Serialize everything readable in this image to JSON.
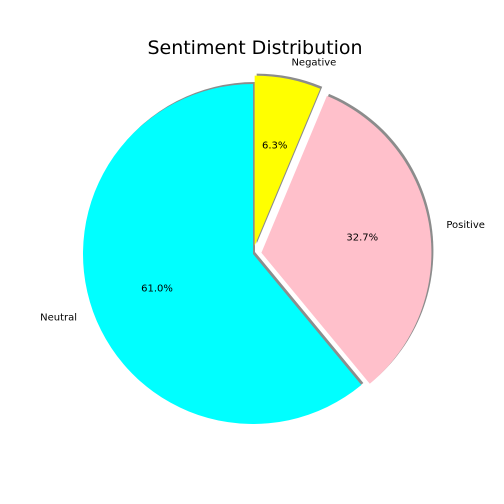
{
  "chart_data": {
    "type": "pie",
    "title": "Sentiment Distribution",
    "slices": [
      {
        "label": "Neutral",
        "value": 61.0,
        "pct_label": "61.0%",
        "color": "#00ffff",
        "explode": 0.0
      },
      {
        "label": "Positive",
        "value": 32.7,
        "pct_label": "32.7%",
        "color": "#ffc0cb",
        "explode": 0.05
      },
      {
        "label": "Negative",
        "value": 6.3,
        "pct_label": "6.3%",
        "color": "#ffff00",
        "explode": 0.05
      }
    ],
    "start_angle": 90,
    "direction": "counterclockwise",
    "shadow": true
  }
}
